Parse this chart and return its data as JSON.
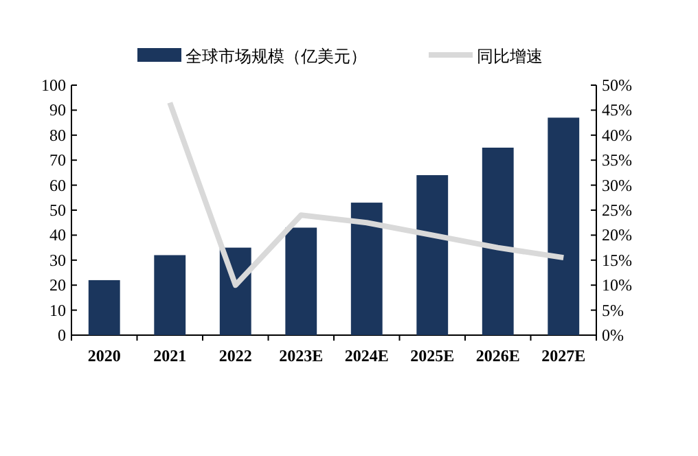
{
  "chart_data": {
    "type": "bar",
    "categories": [
      "2020",
      "2021",
      "2022",
      "2023E",
      "2024E",
      "2025E",
      "2026E",
      "2027E"
    ],
    "series": [
      {
        "name": "全球市场规模（亿美元）",
        "color": "#1b365d",
        "values": [
          22,
          32,
          35,
          43,
          53,
          64,
          75,
          87
        ]
      },
      {
        "name": "同比增速",
        "type": "line",
        "axis": "y2",
        "color": "#d9d9d9",
        "values": [
          null,
          46.5,
          10,
          24,
          22.5,
          20,
          17.5,
          15.5
        ]
      }
    ],
    "ylim": [
      0,
      100
    ],
    "yticks": [
      0,
      10,
      20,
      30,
      40,
      50,
      60,
      70,
      80,
      90,
      100
    ],
    "y2lim": [
      0,
      50
    ],
    "y2ticks": [
      {
        "value": 0,
        "label": "0%"
      },
      {
        "value": 5,
        "label": "5%"
      },
      {
        "value": 10,
        "label": "10%"
      },
      {
        "value": 15,
        "label": "15%"
      },
      {
        "value": 20,
        "label": "20%"
      },
      {
        "value": 25,
        "label": "25%"
      },
      {
        "value": 30,
        "label": "30%"
      },
      {
        "value": 35,
        "label": "35%"
      },
      {
        "value": 40,
        "label": "40%"
      },
      {
        "value": 45,
        "label": "45%"
      },
      {
        "value": 50,
        "label": "50%"
      }
    ],
    "legend": "top",
    "grid": false
  }
}
